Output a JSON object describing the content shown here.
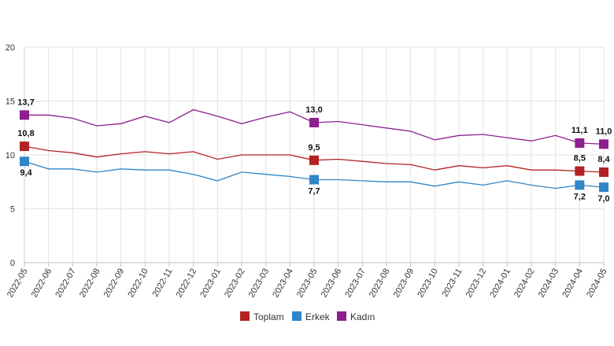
{
  "chart_data": {
    "type": "line",
    "x": [
      "2022-05",
      "2022-06",
      "2022-07",
      "2022-08",
      "2022-09",
      "2022-10",
      "2022-11",
      "2022-12",
      "2023-01",
      "2023-02",
      "2023-03",
      "2023-04",
      "2023-05",
      "2023-06",
      "2023-07",
      "2023-08",
      "2023-09",
      "2023-10",
      "2023-11",
      "2023-12",
      "2024-01",
      "2024-02",
      "2024-03",
      "2024-04",
      "2024-05"
    ],
    "ylim": [
      0,
      20
    ],
    "yticks": [
      "0",
      "5",
      "10",
      "15",
      "20"
    ],
    "grid": true,
    "legend_position": "bottom",
    "series": [
      {
        "name": "Toplam",
        "color": "#b22222",
        "values": [
          10.8,
          10.4,
          10.2,
          9.8,
          10.1,
          10.3,
          10.1,
          10.3,
          9.6,
          10.0,
          10.0,
          10.0,
          9.5,
          9.6,
          9.4,
          9.2,
          9.1,
          8.6,
          9.0,
          8.8,
          9.0,
          8.6,
          8.6,
          8.5,
          8.4
        ]
      },
      {
        "name": "Erkek",
        "color": "#2f86c9",
        "values": [
          9.4,
          8.7,
          8.7,
          8.4,
          8.7,
          8.6,
          8.6,
          8.2,
          7.6,
          8.4,
          8.2,
          8.0,
          7.7,
          7.7,
          7.6,
          7.5,
          7.5,
          7.1,
          7.5,
          7.2,
          7.6,
          7.2,
          6.9,
          7.2,
          7.0
        ]
      },
      {
        "name": "Kadın",
        "color": "#8e1f8e",
        "values": [
          13.7,
          13.7,
          13.4,
          12.7,
          12.9,
          13.6,
          13.0,
          14.2,
          13.6,
          12.9,
          13.5,
          14.0,
          13.0,
          13.1,
          12.8,
          12.5,
          12.2,
          11.4,
          11.8,
          11.9,
          11.6,
          11.3,
          11.8,
          11.1,
          11.0
        ]
      }
    ],
    "data_labels": [
      {
        "series": 0,
        "index": 0,
        "text": "10,8"
      },
      {
        "series": 0,
        "index": 12,
        "text": "9,5"
      },
      {
        "series": 0,
        "index": 23,
        "text": "8,5"
      },
      {
        "series": 0,
        "index": 24,
        "text": "8,4"
      },
      {
        "series": 1,
        "index": 0,
        "text": "9,4"
      },
      {
        "series": 1,
        "index": 12,
        "text": "7,7"
      },
      {
        "series": 1,
        "index": 23,
        "text": "7,2"
      },
      {
        "series": 1,
        "index": 24,
        "text": "7,0"
      },
      {
        "series": 2,
        "index": 0,
        "text": "13,7"
      },
      {
        "series": 2,
        "index": 12,
        "text": "13,0"
      },
      {
        "series": 2,
        "index": 23,
        "text": "11,1"
      },
      {
        "series": 2,
        "index": 24,
        "text": "11,0"
      }
    ]
  }
}
